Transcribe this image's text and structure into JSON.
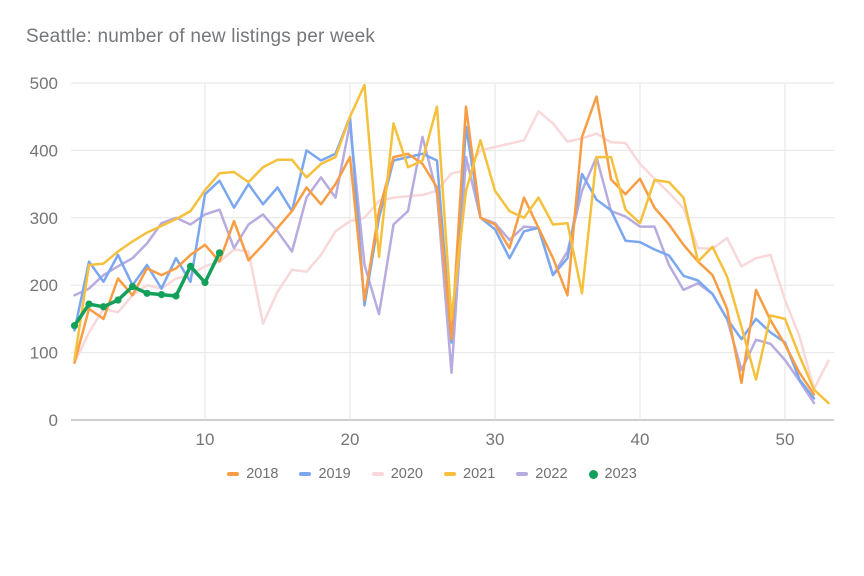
{
  "header": {
    "title": "Seattle: number of new listings per week"
  },
  "axes": {
    "ytick_labels": [
      "0",
      "100",
      "200",
      "300",
      "400",
      "500"
    ],
    "xtick_labels": [
      "10",
      "20",
      "30",
      "40",
      "50"
    ]
  },
  "colors": {
    "title_text": "#74777b",
    "tick_text": "#757575",
    "gridline": "#e6e6e6",
    "baseline": "#9e9e9e",
    "background": "#ffffff"
  },
  "chart_data": {
    "type": "line",
    "title": "Seattle: number of new listings per week",
    "x_description": "week of year, weeks 1-53",
    "xlim": [
      1,
      53
    ],
    "ylim": [
      0,
      500
    ],
    "xticks": [
      10,
      20,
      30,
      40,
      50
    ],
    "yticks": [
      0,
      100,
      200,
      300,
      400,
      500
    ],
    "grid": true,
    "legend_position": "bottom",
    "series": [
      {
        "name": "2018",
        "color": "#f99d45",
        "marker": false,
        "values": [
          85,
          165,
          150,
          210,
          185,
          225,
          215,
          225,
          245,
          260,
          235,
          295,
          237,
          260,
          285,
          310,
          345,
          320,
          350,
          390,
          178,
          310,
          390,
          395,
          380,
          345,
          120,
          465,
          300,
          290,
          255,
          330,
          285,
          240,
          185,
          420,
          480,
          357,
          335,
          358,
          315,
          290,
          260,
          235,
          215,
          165,
          55,
          193,
          148,
          112,
          70,
          38
        ]
      },
      {
        "name": "2019",
        "color": "#7aa7f0",
        "marker": false,
        "values": [
          133,
          235,
          205,
          245,
          200,
          230,
          195,
          240,
          205,
          335,
          355,
          315,
          350,
          320,
          345,
          310,
          400,
          385,
          395,
          450,
          170,
          300,
          385,
          390,
          395,
          385,
          115,
          435,
          300,
          283,
          240,
          280,
          285,
          215,
          240,
          365,
          327,
          311,
          266,
          264,
          253,
          244,
          214,
          207,
          187,
          150,
          120,
          150,
          130,
          115,
          60,
          32
        ]
      },
      {
        "name": "2020",
        "color": "#f8d8d8",
        "marker": false,
        "values": [
          85,
          130,
          165,
          160,
          185,
          200,
          195,
          210,
          215,
          228,
          235,
          253,
          250,
          143,
          190,
          223,
          220,
          245,
          280,
          295,
          300,
          325,
          330,
          332,
          334,
          340,
          366,
          370,
          400,
          405,
          410,
          415,
          458,
          440,
          413,
          418,
          425,
          412,
          411,
          380,
          358,
          337,
          314,
          255,
          254,
          270,
          228,
          240,
          245,
          178,
          124,
          46,
          88
        ]
      },
      {
        "name": "2021",
        "color": "#f5c13d",
        "marker": false,
        "values": [
          90,
          230,
          232,
          250,
          265,
          278,
          288,
          298,
          310,
          341,
          366,
          368,
          353,
          375,
          386,
          386,
          360,
          380,
          390,
          450,
          497,
          242,
          440,
          375,
          385,
          465,
          150,
          340,
          415,
          340,
          310,
          300,
          330,
          290,
          292,
          188,
          390,
          390,
          312,
          292,
          356,
          353,
          330,
          235,
          257,
          213,
          138,
          60,
          155,
          150,
          95,
          45,
          25
        ]
      },
      {
        "name": "2022",
        "color": "#b8abdf",
        "marker": false,
        "values": [
          185,
          195,
          215,
          228,
          240,
          262,
          292,
          300,
          290,
          305,
          312,
          255,
          290,
          305,
          280,
          250,
          330,
          360,
          330,
          440,
          230,
          157,
          290,
          310,
          420,
          336,
          70,
          390,
          300,
          292,
          267,
          287,
          285,
          215,
          250,
          340,
          390,
          310,
          302,
          287,
          287,
          230,
          193,
          203,
          187,
          150,
          74,
          119,
          113,
          89,
          58,
          25
        ]
      },
      {
        "name": "2023",
        "color": "#12a05a",
        "marker": true,
        "values": [
          140,
          172,
          168,
          178,
          198,
          188,
          186,
          184,
          228,
          204,
          248
        ]
      }
    ]
  }
}
